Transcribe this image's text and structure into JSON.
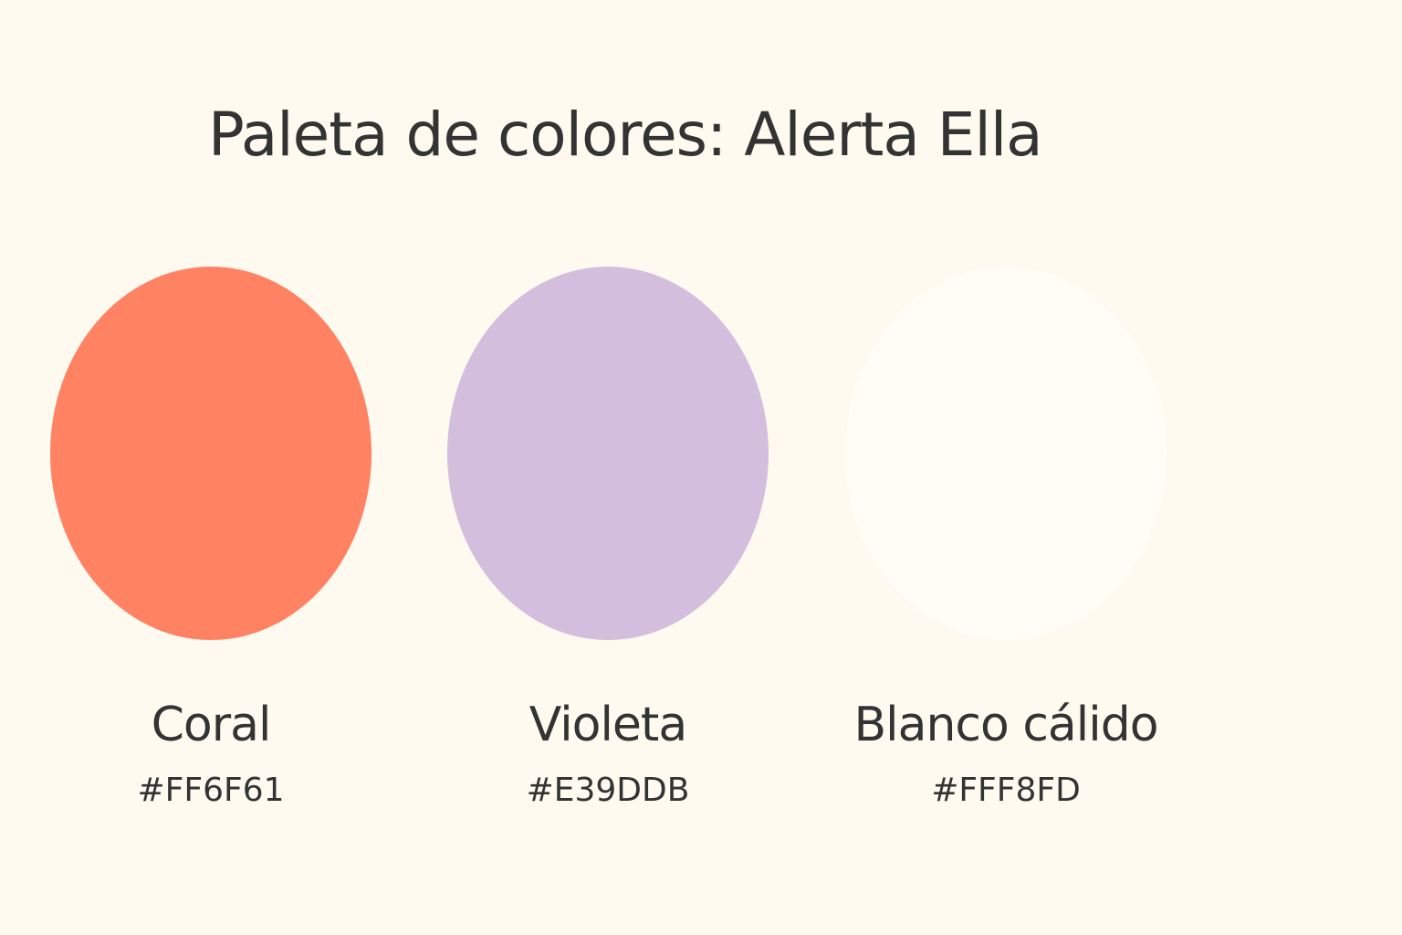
{
  "title": "Paleta de colores: Alerta Ella",
  "swatches": [
    {
      "name": "Coral",
      "hex": "#FF6F61",
      "render_color": "#FF8263"
    },
    {
      "name": "Violeta",
      "hex": "#E39DDB",
      "render_color": "#D4BEDD"
    },
    {
      "name": "Blanco cálido",
      "hex": "#FFF8FD",
      "render_color": "#FFFDF5"
    }
  ],
  "colors": {
    "background": "#FEFAEF",
    "text": "#333333"
  }
}
